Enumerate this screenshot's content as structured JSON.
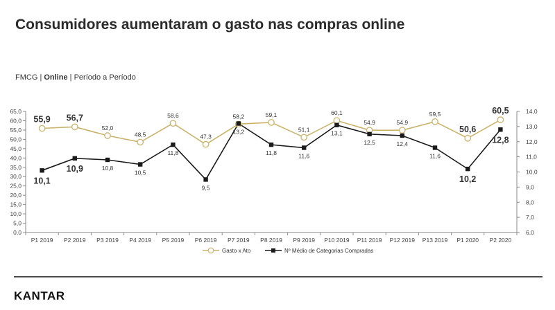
{
  "title": "Consumidores aumentaram o gasto nas compras online",
  "subtitle": {
    "part1": "FMCG",
    "part2": "Online",
    "part3": "Período a Período"
  },
  "logo": "KANTAR",
  "chart_data": {
    "type": "line",
    "categories": [
      "P1 2019",
      "P2 2019",
      "P3 2019",
      "P4 2019",
      "P5 2019",
      "P6 2019",
      "P7 2019",
      "P8 2019",
      "P9 2019",
      "P10 2019",
      "P11 2019",
      "P12 2019",
      "P13 2019",
      "P1 2020",
      "P2 2020"
    ],
    "series": [
      {
        "name": "Gasto x Ato",
        "axis": "left",
        "color": "#c9b26a",
        "marker": "circle",
        "values": [
          55.9,
          56.7,
          52.0,
          48.5,
          58.6,
          47.3,
          58.2,
          59.1,
          51.1,
          60.1,
          54.9,
          54.9,
          59.5,
          50.6,
          60.5
        ],
        "labels": [
          "55,9",
          "56,7",
          "52,0",
          "48,5",
          "58,6",
          "47,3",
          "58,2",
          "59,1",
          "51,1",
          "60,1",
          "54,9",
          "54,9",
          "59,5",
          "50,6",
          "60,5"
        ]
      },
      {
        "name": "Nº Médio de Categorias Compradas",
        "axis": "right",
        "color": "#1a1a1a",
        "marker": "square",
        "values": [
          10.1,
          10.9,
          10.8,
          10.5,
          11.8,
          9.5,
          13.2,
          11.8,
          11.6,
          13.1,
          12.5,
          12.4,
          11.6,
          10.2,
          12.8
        ],
        "labels": [
          "10,1",
          "10,9",
          "10,8",
          "10,5",
          "11,8",
          "9,5",
          "13,2",
          "11,8",
          "11,6",
          "13,1",
          "12,5",
          "12,4",
          "11,6",
          "10,2",
          "12,8"
        ]
      }
    ],
    "emphasized_indices": [
      0,
      1,
      13,
      14
    ],
    "y_left": {
      "min": 0,
      "max": 65,
      "step": 5,
      "ticks": [
        "0,0",
        "5,0",
        "10,0",
        "15,0",
        "20,0",
        "25,0",
        "30,0",
        "35,0",
        "40,0",
        "45,0",
        "50,0",
        "55,0",
        "60,0",
        "65,0"
      ]
    },
    "y_right": {
      "min": 6,
      "max": 14,
      "step": 1,
      "ticks": [
        "6,0",
        "7,0",
        "8,0",
        "9,0",
        "10,0",
        "11,0",
        "12,0",
        "13,0",
        "14,0"
      ]
    },
    "grid": false,
    "legend_position": "bottom"
  }
}
